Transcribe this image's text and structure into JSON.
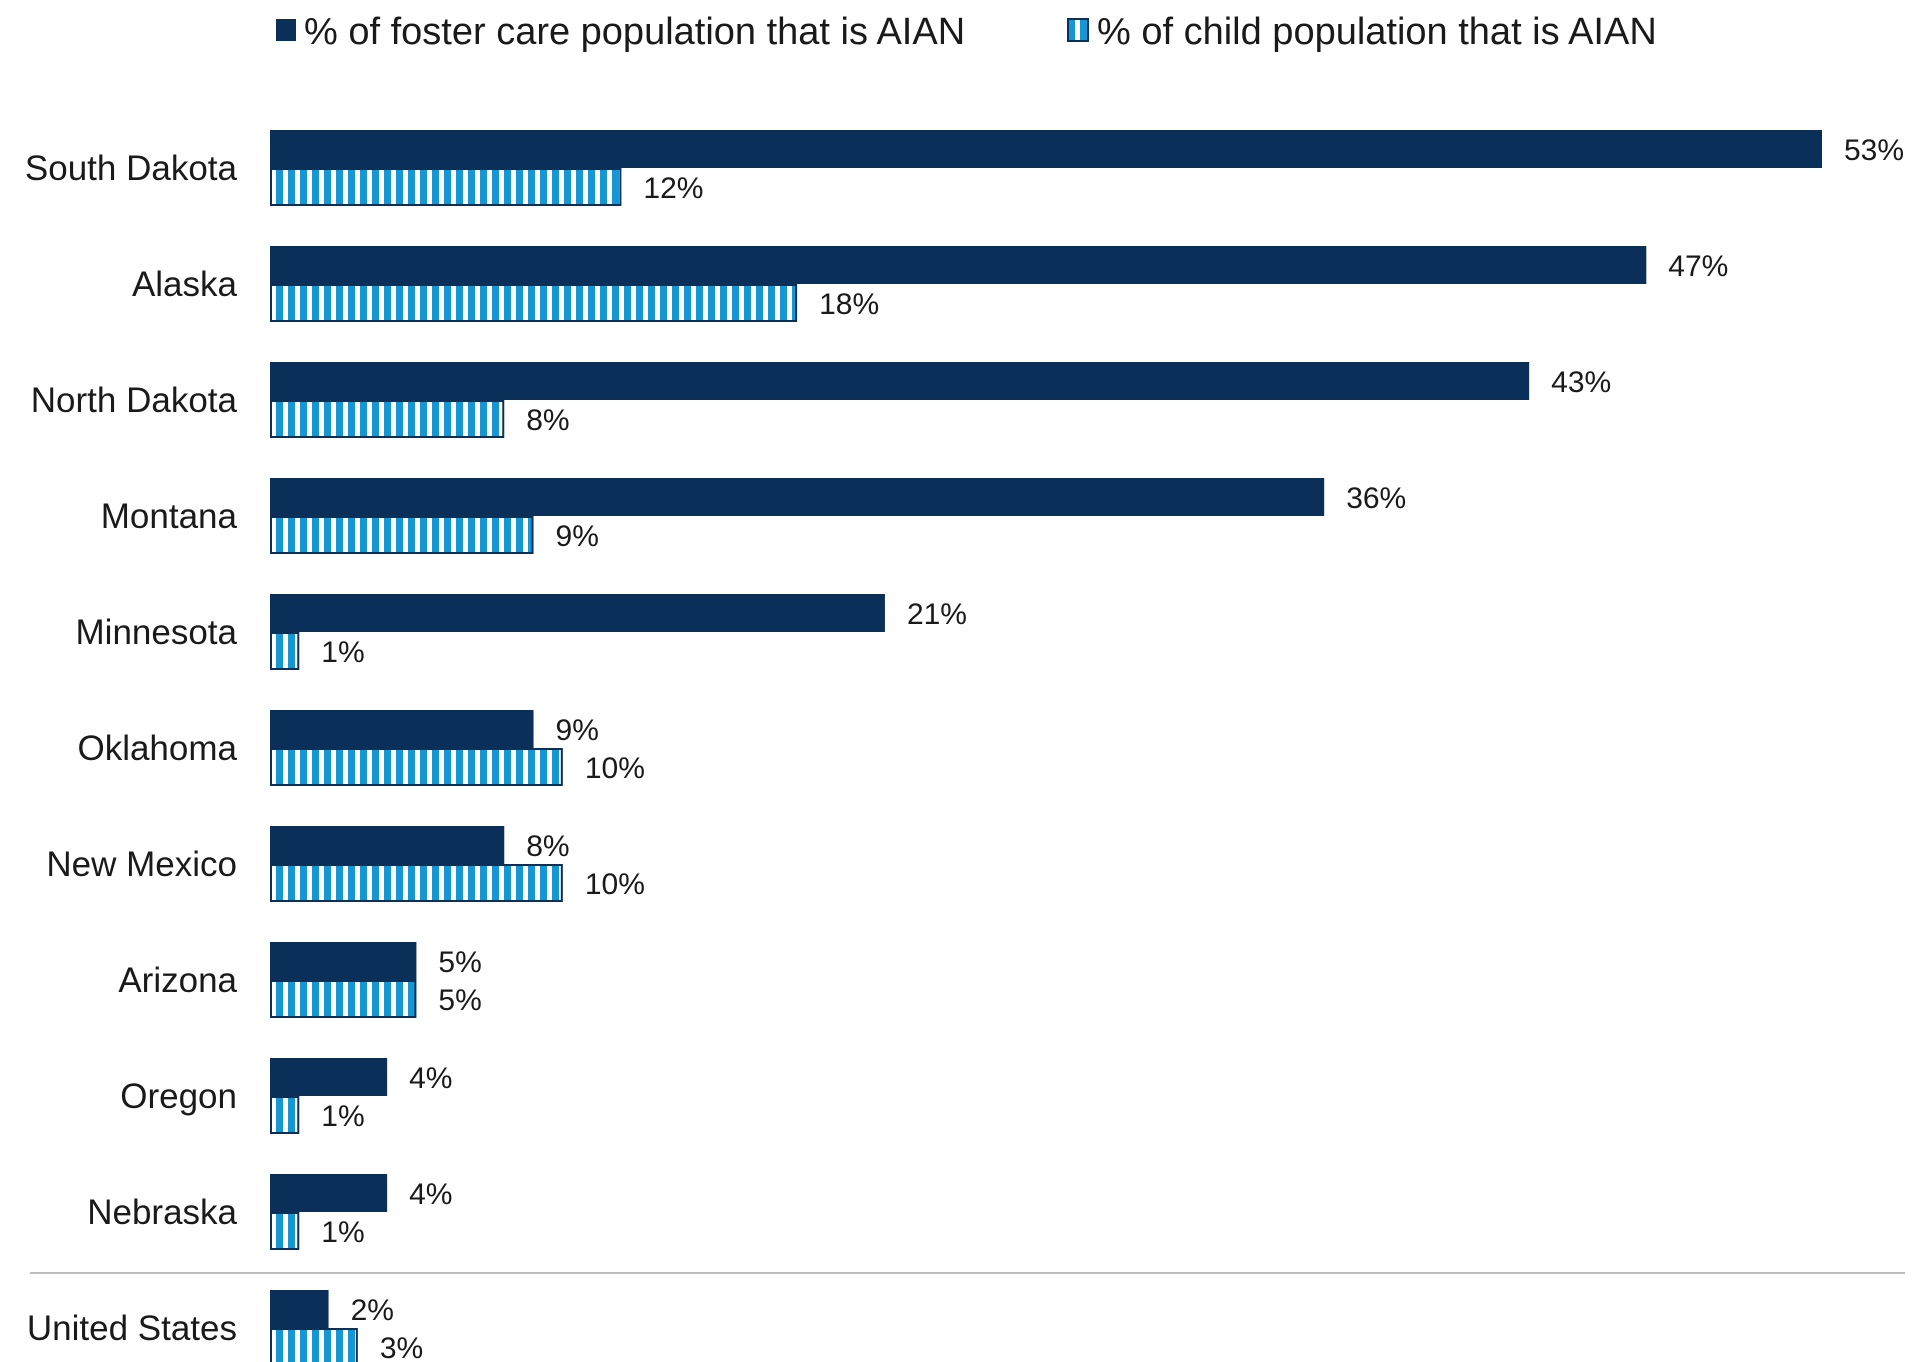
{
  "chart_data": {
    "type": "bar",
    "orientation": "horizontal",
    "categories": [
      "South Dakota",
      "Alaska",
      "North Dakota",
      "Montana",
      "Minnesota",
      "Oklahoma",
      "New Mexico",
      "Arizona",
      "Oregon",
      "Nebraska",
      "United States"
    ],
    "series": [
      {
        "name": "% of foster care population that is AIAN",
        "values": [
          53,
          47,
          43,
          36,
          21,
          9,
          8,
          5,
          4,
          4,
          2
        ],
        "labels": [
          "53%",
          "47%",
          "43%",
          "36%",
          "21%",
          "9%",
          "8%",
          "5%",
          "4%",
          "4%",
          "2%"
        ],
        "color": "#0a3059",
        "pattern": "solid"
      },
      {
        "name": "% of child population that is AIAN",
        "values": [
          12,
          18,
          8,
          9,
          1,
          10,
          10,
          5,
          1,
          1,
          3
        ],
        "labels": [
          "12%",
          "18%",
          "8%",
          "9%",
          "1%",
          "10%",
          "10%",
          "5%",
          "1%",
          "1%",
          "3%"
        ],
        "color": "#1696d2",
        "pattern": "vertical-stripes"
      }
    ],
    "legend": {
      "position": "top"
    },
    "xlim": [
      0,
      53
    ],
    "grid": false,
    "separator_before": "United States"
  }
}
